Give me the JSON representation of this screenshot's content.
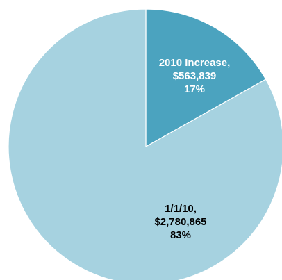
{
  "chart_data": {
    "type": "pie",
    "title": "",
    "legend": "none",
    "start_angle_deg": 0,
    "direction": "clockwise",
    "slices": [
      {
        "label": "2010 Increase,",
        "value_text": "$563,839",
        "percent_text": "17%",
        "value": 563839,
        "color": "#4ba3bf",
        "text_color": "#ffffff"
      },
      {
        "label": "1/1/10,",
        "value_text": "$2,780,865",
        "percent_text": "83%",
        "value": 2780865,
        "color": "#a6d2e0",
        "text_color": "#000000"
      }
    ]
  }
}
